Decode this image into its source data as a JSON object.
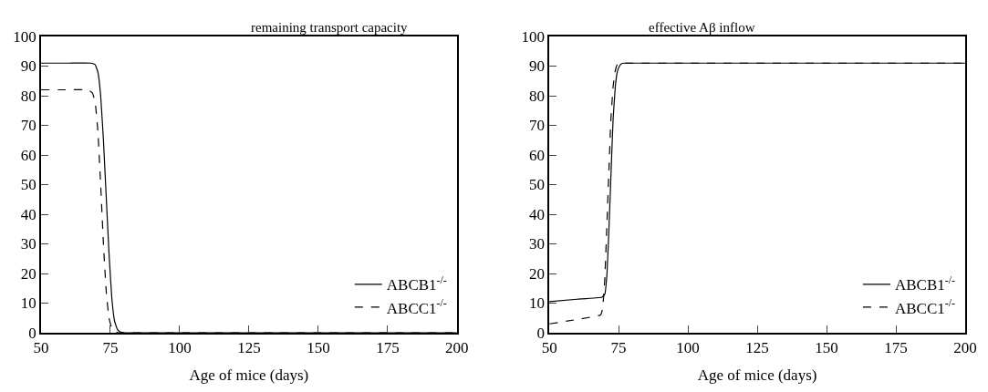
{
  "chart_data": [
    {
      "type": "line",
      "title": "remaining transport capacity",
      "xlabel": "Age of mice (days)",
      "xlim": [
        50,
        200
      ],
      "xticks": [
        50,
        75,
        100,
        125,
        150,
        175,
        200
      ],
      "ylim": [
        0,
        100
      ],
      "yticks": [
        0,
        10,
        20,
        30,
        40,
        50,
        60,
        70,
        80,
        90,
        100
      ],
      "legend": "bottom right",
      "grid": false,
      "series": [
        {
          "name": "ABCB1$^{-/-}$",
          "color": "#000000",
          "line_style": "solid",
          "x": [
            50,
            60,
            68,
            69.5,
            70.5,
            71.5,
            72.5,
            73.5,
            74.5,
            75.5,
            76.5,
            77.5,
            78.5,
            80,
            100,
            200
          ],
          "values": [
            91,
            91,
            91,
            90.5,
            88,
            80,
            65,
            46,
            27,
            12,
            4,
            1.2,
            0.3,
            0,
            0,
            0
          ]
        },
        {
          "name": "ABCC1$^{-/-}$",
          "color": "#000000",
          "line_style": "dashed",
          "x": [
            50,
            60,
            67,
            68.5,
            69.5,
            70.5,
            71.5,
            72.5,
            73.5,
            74.5,
            75.5,
            76.5,
            78,
            100,
            200
          ],
          "values": [
            82,
            82,
            82,
            81,
            78,
            68,
            50,
            30,
            14,
            5,
            1.5,
            0.4,
            0,
            0,
            0
          ]
        }
      ]
    },
    {
      "type": "line",
      "title": "effective Aβ inflow",
      "xlabel": "Age of mice (days)",
      "xlim": [
        50,
        200
      ],
      "xticks": [
        50,
        75,
        100,
        125,
        150,
        175,
        200
      ],
      "ylim": [
        0,
        100
      ],
      "yticks": [
        0,
        10,
        20,
        30,
        40,
        50,
        60,
        70,
        80,
        90,
        100
      ],
      "legend": "bottom right",
      "grid": false,
      "series": [
        {
          "name": "ABCB1$^{-/-}$",
          "color": "#000000",
          "line_style": "solid",
          "x": [
            50,
            60,
            69,
            70,
            70.8,
            71.5,
            72.3,
            73,
            73.8,
            74.5,
            75.3,
            76,
            77,
            78,
            80,
            100,
            200
          ],
          "values": [
            10.5,
            11.3,
            12,
            13,
            20,
            35,
            55,
            72,
            83,
            88,
            90,
            90.8,
            91,
            91,
            91,
            91,
            91
          ]
        },
        {
          "name": "ABCC1$^{-/-}$",
          "color": "#000000",
          "line_style": "dashed",
          "x": [
            50,
            60,
            68.5,
            69.2,
            70,
            70.7,
            71.5,
            72.2,
            73,
            73.7,
            74.5,
            75.5,
            77,
            80,
            100,
            200
          ],
          "values": [
            3,
            4.5,
            6,
            8,
            18,
            35,
            55,
            72,
            83,
            88,
            90.5,
            91,
            91,
            91,
            91,
            91
          ]
        }
      ]
    }
  ]
}
